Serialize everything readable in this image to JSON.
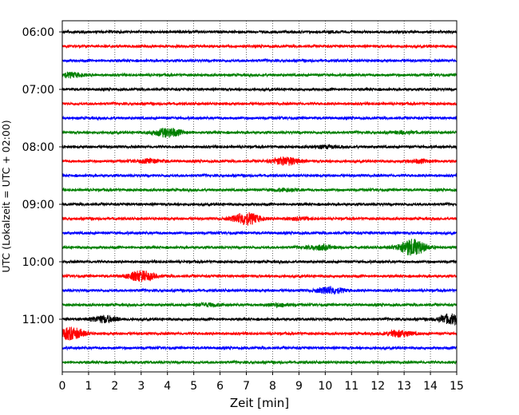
{
  "chart_data": {
    "type": "line",
    "subtype": "helicorder",
    "title": "",
    "xlabel": "Zeit  [min]",
    "ylabel": "UTC (Lokalzeit = UTC + 02:00)",
    "xlim": [
      0,
      15
    ],
    "x_ticks": [
      "0",
      "1",
      "2",
      "3",
      "4",
      "5",
      "6",
      "7",
      "8",
      "9",
      "10",
      "11",
      "12",
      "13",
      "14",
      "15"
    ],
    "y_tick_labels": [
      "06:00",
      "07:00",
      "08:00",
      "09:00",
      "10:00",
      "11:00"
    ],
    "line_minutes": 15,
    "grid": "vertical dotted at each minute",
    "trace_colors": [
      "#000000",
      "#ff0000",
      "#0000ff",
      "#008000"
    ],
    "series": [
      {
        "start": "06:00",
        "bursts": []
      },
      {
        "start": "06:15",
        "bursts": []
      },
      {
        "start": "06:30",
        "bursts": []
      },
      {
        "start": "06:45",
        "bursts": [
          {
            "t": 0.3,
            "amp": 0.2
          }
        ]
      },
      {
        "start": "07:00",
        "bursts": []
      },
      {
        "start": "07:15",
        "bursts": []
      },
      {
        "start": "07:30",
        "bursts": []
      },
      {
        "start": "07:45",
        "bursts": [
          {
            "t": 4.0,
            "amp": 0.4
          },
          {
            "t": 13.0,
            "amp": 0.1
          }
        ]
      },
      {
        "start": "08:00",
        "bursts": [
          {
            "t": 10.0,
            "amp": 0.1
          }
        ]
      },
      {
        "start": "08:15",
        "bursts": [
          {
            "t": 3.3,
            "amp": 0.15
          },
          {
            "t": 8.5,
            "amp": 0.35
          },
          {
            "t": 13.6,
            "amp": 0.12
          }
        ]
      },
      {
        "start": "08:30",
        "bursts": []
      },
      {
        "start": "08:45",
        "bursts": [
          {
            "t": 8.5,
            "amp": 0.1
          }
        ]
      },
      {
        "start": "09:00",
        "bursts": []
      },
      {
        "start": "09:15",
        "bursts": [
          {
            "t": 7.0,
            "amp": 0.55
          },
          {
            "t": 9.0,
            "amp": 0.1
          }
        ]
      },
      {
        "start": "09:30",
        "bursts": []
      },
      {
        "start": "09:45",
        "bursts": [
          {
            "t": 9.8,
            "amp": 0.2
          },
          {
            "t": 13.3,
            "amp": 0.75
          }
        ]
      },
      {
        "start": "10:00",
        "bursts": []
      },
      {
        "start": "10:15",
        "bursts": [
          {
            "t": 3.0,
            "amp": 0.45
          }
        ]
      },
      {
        "start": "10:30",
        "bursts": [
          {
            "t": 10.2,
            "amp": 0.3
          }
        ]
      },
      {
        "start": "10:45",
        "bursts": [
          {
            "t": 5.5,
            "amp": 0.12
          },
          {
            "t": 8.2,
            "amp": 0.12
          }
        ]
      },
      {
        "start": "11:00",
        "bursts": [
          {
            "t": 1.6,
            "amp": 0.3
          },
          {
            "t": 14.8,
            "amp": 0.45
          }
        ]
      },
      {
        "start": "11:15",
        "bursts": [
          {
            "t": 0.3,
            "amp": 0.55
          },
          {
            "t": 12.8,
            "amp": 0.28
          }
        ]
      },
      {
        "start": "11:30",
        "bursts": []
      },
      {
        "start": "11:45",
        "bursts": []
      }
    ]
  }
}
